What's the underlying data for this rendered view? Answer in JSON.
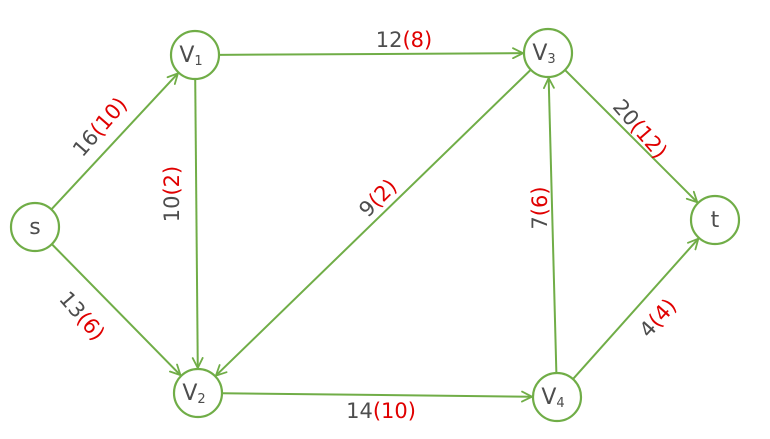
{
  "colors": {
    "edge": "#70ad47",
    "node_stroke": "#70ad47",
    "text": "#4d4d4d",
    "flow": "#e00000"
  },
  "nodes": [
    {
      "id": "s",
      "main": "s",
      "sub": ""
    },
    {
      "id": "v1",
      "main": "V",
      "sub": "1"
    },
    {
      "id": "v2",
      "main": "V",
      "sub": "2"
    },
    {
      "id": "v3",
      "main": "V",
      "sub": "3"
    },
    {
      "id": "v4",
      "main": "V",
      "sub": "4"
    },
    {
      "id": "t",
      "main": "t",
      "sub": ""
    }
  ],
  "edges": [
    {
      "id": "s-v1",
      "from": "s",
      "to": "v1",
      "capacity": "16",
      "flow": "(10)"
    },
    {
      "id": "s-v2",
      "from": "s",
      "to": "v2",
      "capacity": "13",
      "flow": "(6)"
    },
    {
      "id": "v1-v3",
      "from": "v1",
      "to": "v3",
      "capacity": "12",
      "flow": "(8)"
    },
    {
      "id": "v1-v2",
      "from": "v1",
      "to": "v2",
      "capacity": "10",
      "flow": "(2)"
    },
    {
      "id": "v3-v2",
      "from": "v3",
      "to": "v2",
      "capacity": "9",
      "flow": "(2)"
    },
    {
      "id": "v3-t",
      "from": "v3",
      "to": "t",
      "capacity": "20",
      "flow": "(12)"
    },
    {
      "id": "v2-v4",
      "from": "v2",
      "to": "v4",
      "capacity": "14",
      "flow": "(10)"
    },
    {
      "id": "v4-v3",
      "from": "v4",
      "to": "v3",
      "capacity": "7",
      "flow": "(6)"
    },
    {
      "id": "v4-t",
      "from": "v4",
      "to": "t",
      "capacity": "4",
      "flow": "(4)"
    }
  ]
}
